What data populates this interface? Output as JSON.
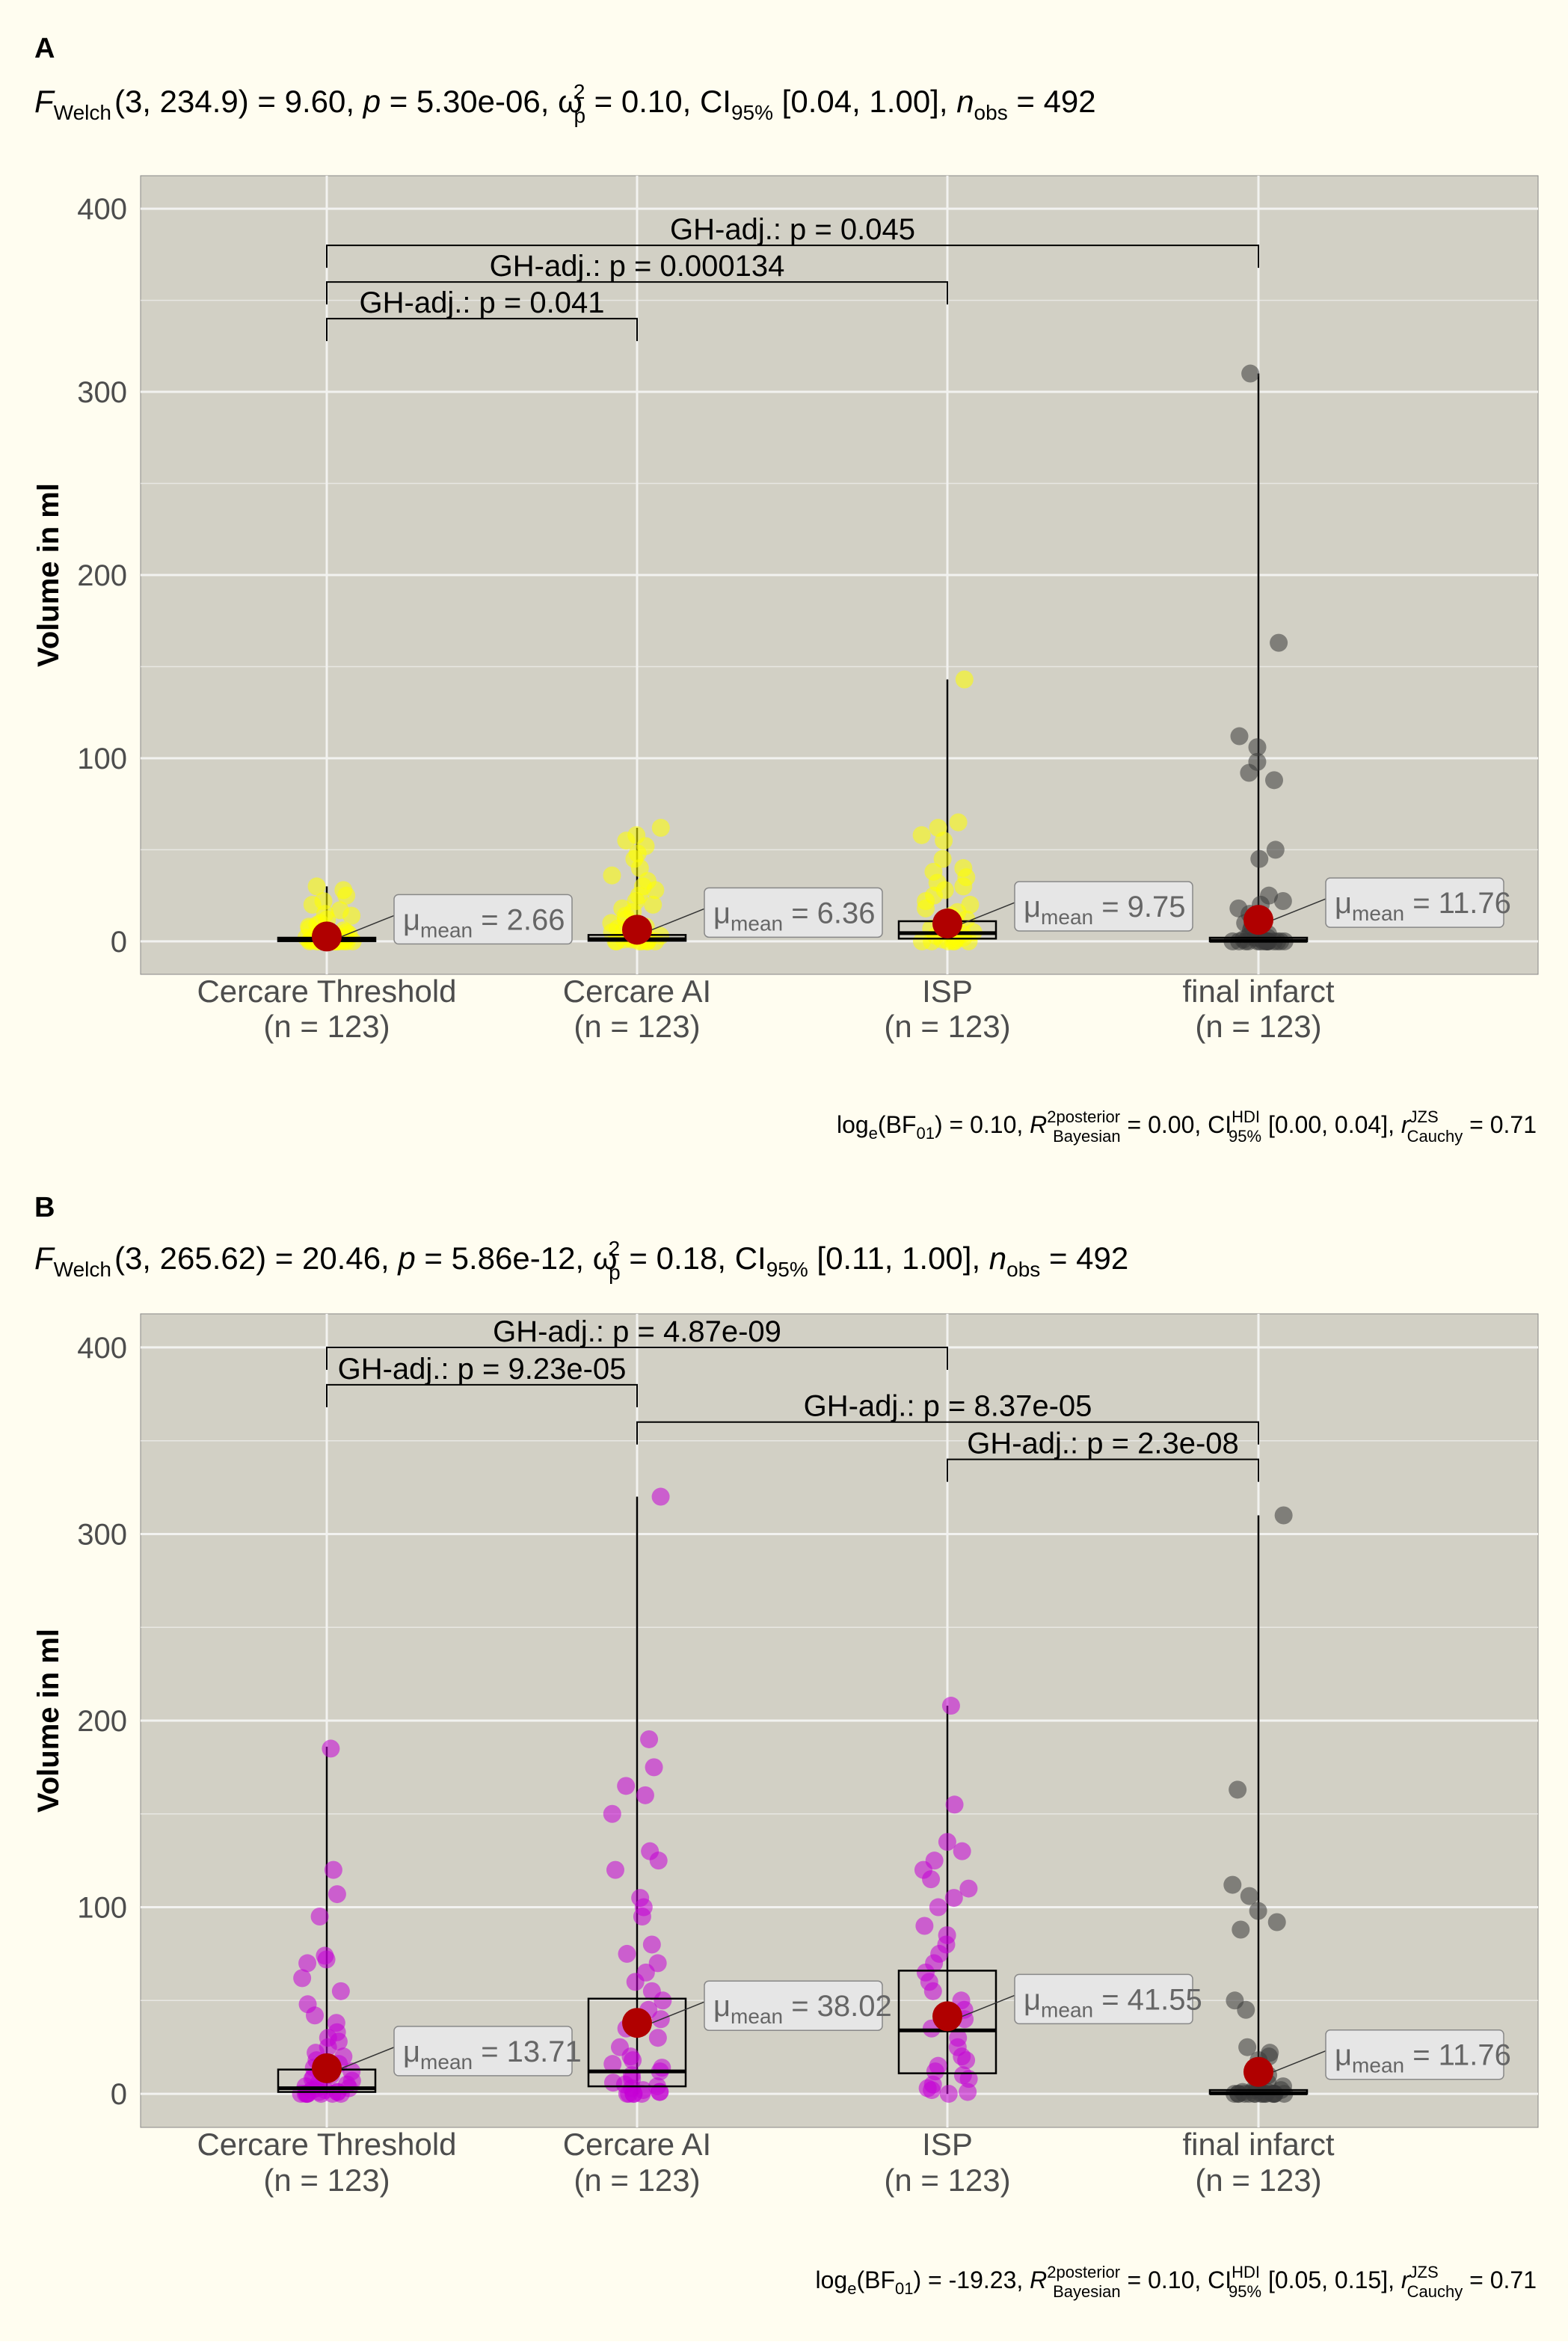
{
  "chart_data": [
    {
      "panel_label": "A",
      "type": "box-violin-scatter",
      "subtitle": {
        "stat": "F",
        "stat_sub": "Welch",
        "df": "(3, 234.9)",
        "value": "= 9.60,",
        "p_label": "p",
        "p_value": "= 5.30e-06,",
        "es_sym": "ω",
        "es_sup": "2",
        "es_sub": "p",
        "es_value": "= 0.10,",
        "ci_label": "CI",
        "ci_sub": "95%",
        "ci_value": "[0.04, 1.00],",
        "n_label": "n",
        "n_sub": "obs",
        "n_value": "= 492"
      },
      "ylabel": "Volume in ml",
      "ylim": [
        -18,
        418
      ],
      "yticks": [
        0,
        100,
        200,
        300,
        400
      ],
      "yticks_text": [
        "0",
        "100",
        "200",
        "300",
        "400"
      ],
      "categories": [
        "Cercare Threshold",
        "Cercare AI",
        "ISP",
        "final infarct"
      ],
      "n_labels": [
        "(n = 123)",
        "(n = 123)",
        "(n = 123)",
        "(n = 123)"
      ],
      "point_colors": [
        "#ffff00",
        "#ffff00",
        "#ffff00",
        "#3a3a3a"
      ],
      "boxes": [
        {
          "q1": 0.1,
          "median": 0.8,
          "q3": 2.0,
          "wlo": 0,
          "whi": 30
        },
        {
          "q1": 0.3,
          "median": 1.2,
          "q3": 3.5,
          "wlo": 0,
          "whi": 62
        },
        {
          "q1": 1.5,
          "median": 4.5,
          "q3": 11.0,
          "wlo": 0,
          "whi": 143
        },
        {
          "q1": 0.0,
          "median": 0.3,
          "q3": 2.0,
          "wlo": 0,
          "whi": 310
        }
      ],
      "means": [
        2.66,
        6.36,
        9.75,
        11.76
      ],
      "mean_labels": [
        "2.66",
        "6.36",
        "9.75",
        "11.76"
      ],
      "mean_label_prefix": "μ",
      "mean_label_sub": "mean",
      "comparisons": [
        {
          "group1": 0,
          "group2": 3,
          "label": "GH-adj.: p = 0.045",
          "y": 380
        },
        {
          "group1": 0,
          "group2": 2,
          "label": "GH-adj.: p = 0.000134",
          "y": 360
        },
        {
          "group1": 0,
          "group2": 1,
          "label": "GH-adj.: p = 0.041",
          "y": 340
        }
      ],
      "points": [
        [
          0,
          0,
          0,
          0,
          0,
          0,
          0,
          0,
          0,
          0,
          0,
          0,
          0.5,
          0.5,
          1,
          1,
          1,
          1,
          1.5,
          2,
          2,
          2,
          3,
          3,
          3,
          4,
          4,
          5,
          5,
          6,
          6,
          7,
          8,
          9,
          10,
          12,
          14,
          15,
          17,
          20,
          22,
          25,
          28,
          30
        ],
        [
          0,
          0,
          0,
          0,
          0,
          0,
          0,
          1,
          1,
          1,
          2,
          2,
          3,
          3,
          4,
          5,
          6,
          7,
          8,
          10,
          12,
          14,
          16,
          18,
          20,
          22,
          25,
          28,
          30,
          33,
          36,
          40,
          45,
          48,
          52,
          55,
          58,
          62
        ],
        [
          0,
          0,
          0,
          0,
          0,
          0,
          1,
          1,
          2,
          2,
          3,
          4,
          5,
          6,
          7,
          8,
          10,
          12,
          14,
          16,
          18,
          20,
          22,
          25,
          28,
          30,
          32,
          35,
          38,
          40,
          45,
          55,
          58,
          62,
          65,
          143
        ],
        [
          0,
          0,
          0,
          0,
          0,
          0,
          0,
          0,
          0,
          0,
          0,
          0,
          0,
          0,
          0,
          0,
          1,
          1,
          2,
          2,
          3,
          4,
          6,
          8,
          10,
          15,
          18,
          20,
          22,
          25,
          45,
          50,
          88,
          92,
          98,
          106,
          112,
          163,
          310
        ]
      ],
      "footer": {
        "bf": "log",
        "bf_sub": "e",
        "bf_arg": "(BF",
        "bf_arg_sub": "01",
        "bf_value": ") = 0.10,",
        "r2": "R",
        "r2_sup": "2",
        "r2_posterior": "posterior",
        "r2_bayesian": "Bayesian",
        "r2_value": "= 0.00,",
        "ci": "CI",
        "ci_sup": "HDI",
        "ci_sub": "95%",
        "ci_value": "[0.00, 0.04],",
        "r": "r",
        "r_sup": "JZS",
        "r_sub": "Cauchy",
        "r_value": "= 0.71"
      }
    },
    {
      "panel_label": "B",
      "type": "box-violin-scatter",
      "subtitle": {
        "stat": "F",
        "stat_sub": "Welch",
        "df": "(3, 265.62)",
        "value": "= 20.46,",
        "p_label": "p",
        "p_value": "= 5.86e-12,",
        "es_sym": "ω",
        "es_sup": "2",
        "es_sub": "p",
        "es_value": "= 0.18,",
        "ci_label": "CI",
        "ci_sub": "95%",
        "ci_value": "[0.11, 1.00],",
        "n_label": "n",
        "n_sub": "obs",
        "n_value": "= 492"
      },
      "ylabel": "Volume in ml",
      "ylim": [
        -18,
        418
      ],
      "yticks": [
        0,
        100,
        200,
        300,
        400
      ],
      "yticks_text": [
        "0",
        "100",
        "200",
        "300",
        "400"
      ],
      "categories": [
        "Cercare Threshold",
        "Cercare AI",
        "ISP",
        "final infarct"
      ],
      "n_labels": [
        "(n = 123)",
        "(n = 123)",
        "(n = 123)",
        "(n = 123)"
      ],
      "point_colors": [
        "#c400d6",
        "#c400d6",
        "#c400d6",
        "#3a3a3a"
      ],
      "boxes": [
        {
          "q1": 1.0,
          "median": 3.0,
          "q3": 13.0,
          "wlo": 0,
          "whi": 186
        },
        {
          "q1": 4.0,
          "median": 12.0,
          "q3": 51.0,
          "wlo": 0,
          "whi": 320
        },
        {
          "q1": 11.0,
          "median": 34.0,
          "q3": 66.0,
          "wlo": 0,
          "whi": 208
        },
        {
          "q1": 0.0,
          "median": 0.3,
          "q3": 2.0,
          "wlo": 0,
          "whi": 310
        }
      ],
      "means": [
        13.71,
        38.02,
        41.55,
        11.76
      ],
      "mean_labels": [
        "13.71",
        "38.02",
        "41.55",
        "11.76"
      ],
      "mean_label_prefix": "μ",
      "mean_label_sub": "mean",
      "comparisons": [
        {
          "group1": 0,
          "group2": 2,
          "label": "GH-adj.: p = 4.87e-09",
          "y": 400
        },
        {
          "group1": 0,
          "group2": 1,
          "label": "GH-adj.: p = 9.23e-05",
          "y": 380
        },
        {
          "group1": 1,
          "group2": 3,
          "label": "GH-adj.: p = 8.37e-05",
          "y": 360
        },
        {
          "group1": 2,
          "group2": 3,
          "label": "GH-adj.: p = 2.3e-08",
          "y": 340
        }
      ],
      "points": [
        [
          0,
          0,
          0,
          0,
          0,
          0,
          0,
          0,
          1,
          1,
          1,
          2,
          2,
          3,
          3,
          4,
          5,
          6,
          7,
          8,
          9,
          10,
          12,
          14,
          16,
          18,
          20,
          22,
          25,
          28,
          30,
          33,
          38,
          42,
          48,
          55,
          62,
          70,
          72,
          74,
          95,
          107,
          120,
          185
        ],
        [
          0,
          0,
          0,
          0,
          0,
          1,
          1,
          2,
          3,
          4,
          5,
          6,
          8,
          10,
          12,
          14,
          16,
          18,
          20,
          25,
          30,
          35,
          40,
          45,
          50,
          55,
          60,
          65,
          70,
          75,
          80,
          95,
          100,
          105,
          120,
          125,
          130,
          150,
          160,
          165,
          175,
          190,
          320
        ],
        [
          0,
          1,
          2,
          3,
          5,
          8,
          10,
          12,
          15,
          18,
          20,
          25,
          30,
          35,
          40,
          45,
          50,
          55,
          60,
          65,
          70,
          75,
          80,
          85,
          90,
          100,
          105,
          110,
          115,
          120,
          125,
          130,
          135,
          155,
          208
        ],
        [
          0,
          0,
          0,
          0,
          0,
          0,
          0,
          0,
          0,
          0,
          0,
          0,
          0,
          0,
          0,
          0,
          1,
          1,
          2,
          2,
          3,
          4,
          6,
          8,
          10,
          15,
          18,
          20,
          22,
          25,
          45,
          50,
          88,
          92,
          98,
          106,
          112,
          163,
          310
        ]
      ],
      "footer": {
        "bf": "log",
        "bf_sub": "e",
        "bf_arg": "(BF",
        "bf_arg_sub": "01",
        "bf_value": ") = -19.23,",
        "r2": "R",
        "r2_sup": "2",
        "r2_posterior": "posterior",
        "r2_bayesian": "Bayesian",
        "r2_value": "= 0.10,",
        "ci": "CI",
        "ci_sup": "HDI",
        "ci_sub": "95%",
        "ci_value": "[0.05, 0.15],",
        "r": "r",
        "r_sup": "JZS",
        "r_sub": "Cauchy",
        "r_value": "= 0.71"
      }
    }
  ],
  "colors": {
    "panel_bg": "#d2d0c5",
    "figure_bg": "#fffdf0",
    "grid": "#f2f2f0",
    "mean_point": "#b00000",
    "label_box": "#e6e6e6",
    "label_text": "#666666"
  }
}
